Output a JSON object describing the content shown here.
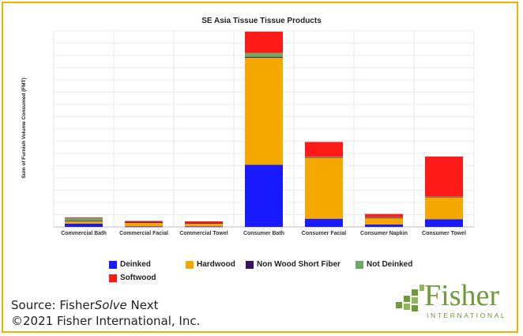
{
  "chart_data": {
    "type": "bar",
    "stacked": true,
    "title": "SE Asia Tissue Tissue Products",
    "ylabel": "Sum of Furnish Volume Consumed (FMT)",
    "xlabel": "",
    "grid": true,
    "legend_position": "bottom",
    "categories": [
      "Commercial Bath",
      "Commercial Facial",
      "Commercial Towel",
      "Consumer Bath",
      "Consumer Facial",
      "Consumer Napkin",
      "Consumer Towel"
    ],
    "series": [
      {
        "name": "Deinked",
        "color": "#1a1aff",
        "values": [
          4,
          0.5,
          0.5,
          76,
          10,
          3,
          9.5
        ]
      },
      {
        "name": "Hardwood",
        "color": "#f5a800",
        "values": [
          3,
          5,
          4,
          131,
          75,
          8,
          27
        ]
      },
      {
        "name": "Non Wood Short Fiber",
        "color": "#3b1060",
        "values": [
          0.5,
          0.3,
          0.3,
          1,
          0.5,
          0.3,
          0.3
        ]
      },
      {
        "name": "Not Deinked",
        "color": "#6aaa64",
        "values": [
          3,
          0,
          0,
          5,
          0.5,
          0.5,
          0.3
        ]
      },
      {
        "name": "Softwood",
        "color": "#ff1a1a",
        "values": [
          1,
          1.5,
          2,
          26,
          18,
          4,
          49
        ]
      }
    ],
    "ylim": [
      0,
      240
    ]
  },
  "source": {
    "prefix": "Source: Fisher",
    "italic": "Solve",
    "suffix": " Next",
    "copyright": "©2021 Fisher International, Inc."
  },
  "logo": {
    "word": "Fisher",
    "sub": "INTERNATIONAL",
    "color": "#6d9b3a"
  }
}
